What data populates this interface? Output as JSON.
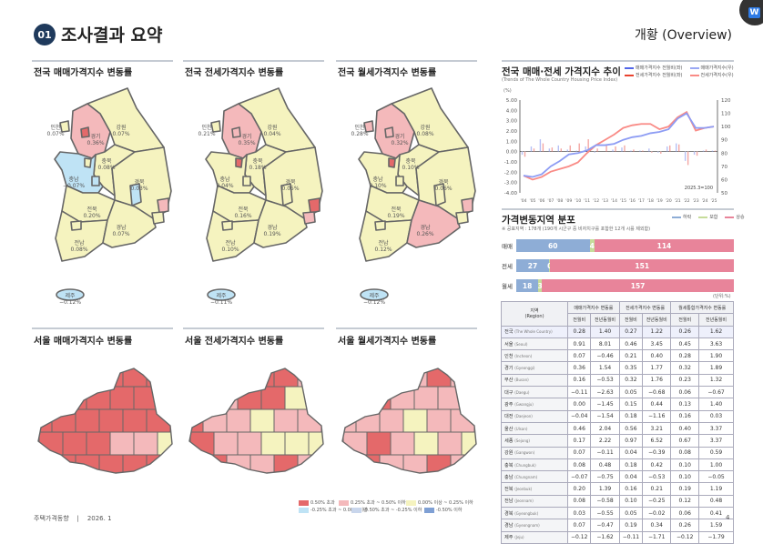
{
  "header": {
    "badge": "01",
    "title": "조사결과 요약",
    "overview": "개황 (Overview)"
  },
  "colors": {
    "accent": "#1f3a5c",
    "lvl": [
      "#e4696a",
      "#f4b9bb",
      "#f5f3bf",
      "#bfe3f5",
      "#c9d6ec",
      "#7fa0d4"
    ],
    "fall": "#8eadd6",
    "flat": "#c6dc9a",
    "rise": "#e8849a",
    "sales_line": "#6b82ef",
    "jeonse_line": "#f0605a"
  },
  "maps": [
    {
      "title": "전국 매매가격지수 변동률",
      "col": 0
    },
    {
      "title": "전국 전세가격지수 변동률",
      "col": 2
    },
    {
      "title": "전국 월세가격지수 변동률",
      "col": 4
    }
  ],
  "seoul_maps": [
    {
      "title": "서울 매매가격지수 변동률",
      "levels": [
        0,
        0,
        0,
        0,
        0,
        0,
        0,
        0,
        0,
        0,
        0,
        0,
        0,
        0,
        0,
        0,
        0,
        0,
        0,
        0,
        0,
        1,
        1,
        2,
        0,
        0,
        0,
        0,
        0,
        0
      ]
    },
    {
      "title": "서울 전세가격지수 변동률",
      "levels": [
        1,
        1,
        1,
        0,
        0,
        1,
        1,
        1,
        0,
        0,
        2,
        1,
        0,
        1,
        1,
        2,
        1,
        1,
        0,
        1,
        1,
        2,
        2,
        2,
        1,
        0,
        1,
        1,
        0,
        1
      ]
    },
    {
      "title": "서울 월세가격지수 변동률",
      "levels": [
        1,
        0,
        1,
        1,
        0,
        1,
        1,
        0,
        1,
        1,
        1,
        0,
        1,
        1,
        1,
        2,
        1,
        1,
        1,
        0,
        1,
        2,
        1,
        2,
        1,
        0,
        1,
        1,
        0,
        1
      ]
    }
  ],
  "map_legend": [
    "0.50% 초과",
    "0.25% 초과 ~ 0.50% 이하",
    "0.00% 이상 ~ 0.25% 이하",
    "-0.25% 초과 ~ 0.00% 미만",
    "-0.50% 초과 ~ -0.25% 이하",
    "-0.50% 이하"
  ],
  "trend": {
    "title": "전국 매매·전세 가격지수 추이",
    "subtitle": "(Trends of The Whole Country Housing Price Index)",
    "unit": "(%)",
    "note": "2025.3=100",
    "legend": [
      "매매가격지수 전월비(좌)",
      "매매가격지수(우)",
      "전세가격지수 전월비(좌)",
      "전세가격지수(우)"
    ]
  },
  "chart_data": [
    {
      "type": "line",
      "title": "전국 매매·전세 가격지수 추이",
      "x": [
        "'04",
        "'05",
        "'06",
        "'07",
        "'08",
        "'09",
        "'10",
        "'11",
        "'12",
        "'13",
        "'14",
        "'15",
        "'16",
        "'17",
        "'18",
        "'19",
        "'20",
        "'21",
        "'22",
        "'23",
        "'24",
        "'25"
      ],
      "y_left_ticks": [
        "5.00",
        "4.00",
        "3.00",
        "2.00",
        "1.00",
        "0.00",
        "-1.00",
        "-2.00",
        "-3.00",
        "-4.00"
      ],
      "y_right_ticks": [
        "120",
        "110",
        "100",
        "90",
        "80",
        "70",
        "60",
        "50"
      ],
      "ylim_left": [
        -4,
        5
      ],
      "ylim_right": [
        50,
        120
      ],
      "series": [
        {
          "name": "매매가격지수(우)",
          "axis": "right",
          "values": [
            63,
            62,
            64,
            70,
            74,
            79,
            80,
            82,
            86,
            86,
            87,
            90,
            92,
            93,
            95,
            96,
            98,
            106,
            110,
            99,
            99,
            100
          ]
        },
        {
          "name": "전세가격지수(우)",
          "axis": "right",
          "values": [
            63,
            60,
            62,
            66,
            68,
            70,
            73,
            80,
            86,
            90,
            94,
            99,
            101,
            102,
            102,
            98,
            100,
            107,
            111,
            97,
            99,
            100
          ]
        },
        {
          "name": "매매가격지수 전월비(좌)",
          "axis": "left",
          "values": [
            -0.3,
            0.5,
            1.2,
            0.3,
            0.6,
            0.2,
            0.1,
            0.5,
            -0.1,
            0.0,
            0.2,
            0.4,
            0.1,
            0.1,
            0.3,
            -0.1,
            0.5,
            0.8,
            -0.9,
            -0.3,
            0.1,
            0.1
          ]
        },
        {
          "name": "전세가격지수 전월비(좌)",
          "axis": "left",
          "values": [
            -0.5,
            0.3,
            0.8,
            0.4,
            0.3,
            0.6,
            0.8,
            1.2,
            0.3,
            0.6,
            0.5,
            0.6,
            0.2,
            0.1,
            -0.1,
            -0.2,
            0.6,
            0.7,
            -1.3,
            -0.4,
            0.2,
            0.1
          ]
        }
      ]
    },
    {
      "type": "bar",
      "title": "가격변동지역 분포",
      "categories": [
        "매매",
        "전세",
        "월세"
      ],
      "legend": [
        "하락",
        "보합",
        "상승"
      ],
      "series": [
        {
          "name": "하락",
          "values": [
            60,
            27,
            18
          ]
        },
        {
          "name": "보합",
          "values": [
            4,
            0,
            3
          ]
        },
        {
          "name": "상승",
          "values": [
            114,
            151,
            157
          ]
        }
      ]
    }
  ],
  "dist": {
    "title": "가격변동지역 분포",
    "note": "※ 공표지역 : 178개 (190개 시군구 중 비자치구를 포함한 12개 시를 제외함)",
    "unit": "(단위:%)"
  },
  "table": {
    "h_region": "지역",
    "h_region_en": "(Region)",
    "groups": [
      "매매가격지수 변동률",
      "전세가격지수 변동률",
      "월세통합가격지수 변동률"
    ],
    "sub": [
      "전월비",
      "전년동월비",
      "전월비",
      "전년동월비",
      "전월비",
      "전년동월비"
    ],
    "rows": [
      {
        "key": "whole",
        "r": "전국",
        "en": "(The Whole Country)",
        "v": [
          "0.28",
          "1.40",
          "0.27",
          "1.22",
          "0.26",
          "1.62"
        ]
      },
      {
        "key": "seoul",
        "r": "서울",
        "en": "(Seoul)",
        "v": [
          "0.91",
          "8.01",
          "0.46",
          "3.45",
          "0.45",
          "3.63"
        ]
      },
      {
        "key": "incheon",
        "r": "인천",
        "en": "(Incheon)",
        "v": [
          "0.07",
          "−0.46",
          "0.21",
          "0.40",
          "0.28",
          "1.90"
        ]
      },
      {
        "key": "gyeonggi",
        "r": "경기",
        "en": "(Gyeonggi)",
        "v": [
          "0.36",
          "1.54",
          "0.35",
          "1.77",
          "0.32",
          "1.89"
        ]
      },
      {
        "key": "busan",
        "r": "부산",
        "en": "(Busan)",
        "v": [
          "0.16",
          "−0.53",
          "0.32",
          "1.76",
          "0.23",
          "1.32"
        ]
      },
      {
        "key": "daegu",
        "r": "대구",
        "en": "(Daegu)",
        "v": [
          "−0.11",
          "−2.63",
          "0.05",
          "−0.68",
          "0.06",
          "−0.67"
        ]
      },
      {
        "key": "gwangju",
        "r": "광주",
        "en": "(Gwangju)",
        "v": [
          "0.00",
          "−1.45",
          "0.15",
          "0.44",
          "0.13",
          "1.40"
        ]
      },
      {
        "key": "daejeon",
        "r": "대전",
        "en": "(Daejeon)",
        "v": [
          "−0.04",
          "−1.54",
          "0.18",
          "−1.16",
          "0.16",
          "0.03"
        ]
      },
      {
        "key": "ulsan",
        "r": "울산",
        "en": "(Ulsan)",
        "v": [
          "0.46",
          "2.04",
          "0.56",
          "3.21",
          "0.40",
          "3.37"
        ]
      },
      {
        "key": "sejong",
        "r": "세종",
        "en": "(Sejong)",
        "v": [
          "0.17",
          "2.22",
          "0.97",
          "6.52",
          "0.67",
          "3.37"
        ]
      },
      {
        "key": "gangwon",
        "r": "강원",
        "en": "(Gangwon)",
        "v": [
          "0.07",
          "−0.11",
          "0.04",
          "−0.39",
          "0.08",
          "0.59"
        ]
      },
      {
        "key": "chungbuk",
        "r": "충북",
        "en": "(Chungbuk)",
        "v": [
          "0.08",
          "0.48",
          "0.18",
          "0.42",
          "0.10",
          "1.00"
        ]
      },
      {
        "key": "chungnam",
        "r": "충남",
        "en": "(Chungnam)",
        "v": [
          "−0.07",
          "−0.75",
          "0.04",
          "−0.53",
          "0.10",
          "−0.05"
        ]
      },
      {
        "key": "jeonbuk",
        "r": "전북",
        "en": "(Jeonbuk)",
        "v": [
          "0.20",
          "1.39",
          "0.16",
          "0.21",
          "0.19",
          "1.19"
        ]
      },
      {
        "key": "jeonnam",
        "r": "전남",
        "en": "(Jeonnam)",
        "v": [
          "0.08",
          "−0.58",
          "0.10",
          "−0.25",
          "0.12",
          "0.48"
        ]
      },
      {
        "key": "gyeongbuk",
        "r": "경북",
        "en": "(Gyeongbuk)",
        "v": [
          "0.03",
          "−0.55",
          "0.05",
          "−0.02",
          "0.06",
          "0.41"
        ]
      },
      {
        "key": "gyeongnam",
        "r": "경남",
        "en": "(Gyeongnam)",
        "v": [
          "0.07",
          "−0.47",
          "0.19",
          "0.34",
          "0.26",
          "1.59"
        ]
      },
      {
        "key": "jeju",
        "r": "제주",
        "en": "(Jeju)",
        "v": [
          "−0.12",
          "−1.62",
          "−0.11",
          "−1.71",
          "−0.12",
          "−1.79"
        ]
      }
    ]
  },
  "footer": {
    "left": "주택가격동향",
    "sep": "|",
    "date": "2026. 1",
    "page": "4"
  }
}
